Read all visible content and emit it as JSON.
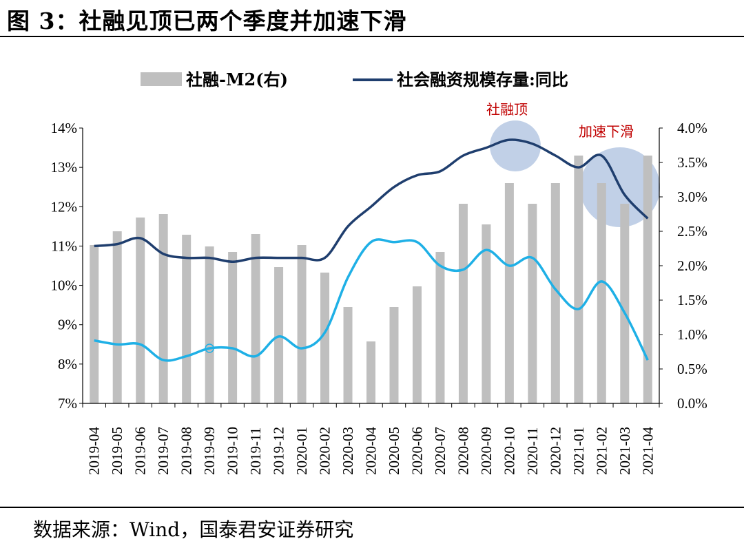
{
  "figure_title": "图 3：社融见顶已两个季度并加速下滑",
  "source": "数据来源：Wind，国泰君安证券研究",
  "colors": {
    "bar": "#bfbfbf",
    "line_dark": "#1f3e6e",
    "line_light": "#1fb0e6",
    "annotation_text": "#c00000",
    "highlight_circle": "#8ea9d4"
  },
  "chart_data": {
    "type": "bar+line",
    "categories": [
      "2019-04",
      "2019-05",
      "2019-06",
      "2019-07",
      "2019-08",
      "2019-09",
      "2019-10",
      "2019-11",
      "2019-12",
      "2020-01",
      "2020-02",
      "2020-03",
      "2020-04",
      "2020-05",
      "2020-06",
      "2020-07",
      "2020-08",
      "2020-09",
      "2020-10",
      "2020-11",
      "2020-12",
      "2021-01",
      "2021-02",
      "2021-03",
      "2021-04"
    ],
    "left_axis": {
      "min": 7,
      "max": 14,
      "step": 1,
      "ticks": [
        "7%",
        "8%",
        "9%",
        "10%",
        "11%",
        "12%",
        "13%",
        "14%"
      ]
    },
    "right_axis": {
      "min": 0,
      "max": 4,
      "step": 0.5,
      "ticks": [
        "0.0%",
        "0.5%",
        "1.0%",
        "1.5%",
        "2.0%",
        "2.5%",
        "3.0%",
        "3.5%",
        "4.0%"
      ]
    },
    "legend": [
      {
        "name": "社融-M2(右)",
        "kind": "bar"
      },
      {
        "name": "社会融资规模存量:同比",
        "kind": "line"
      }
    ],
    "series": [
      {
        "name": "社融-M2(右)",
        "type": "bar",
        "axis": "right",
        "values": [
          2.3,
          2.5,
          2.7,
          2.75,
          2.45,
          2.28,
          2.2,
          2.46,
          1.98,
          2.3,
          1.9,
          1.4,
          0.9,
          1.4,
          1.7,
          2.2,
          2.9,
          2.6,
          3.2,
          2.9,
          3.2,
          3.6,
          3.2,
          2.9,
          3.6
        ]
      },
      {
        "name": "社会融资规模存量:同比",
        "type": "line",
        "axis": "left",
        "values": [
          11.0,
          11.05,
          11.2,
          10.8,
          10.7,
          10.7,
          10.6,
          10.7,
          10.7,
          10.7,
          10.7,
          11.5,
          12.0,
          12.5,
          12.8,
          12.9,
          13.3,
          13.5,
          13.7,
          13.6,
          13.3,
          13.0,
          13.3,
          12.3,
          11.7
        ]
      },
      {
        "type": "line",
        "axis": "left",
        "values": [
          8.6,
          8.5,
          8.5,
          8.1,
          8.2,
          8.4,
          8.4,
          8.2,
          8.7,
          8.4,
          8.8,
          10.2,
          11.1,
          11.1,
          11.1,
          10.5,
          10.4,
          10.9,
          10.5,
          10.7,
          9.9,
          9.4,
          10.1,
          9.3,
          8.1
        ]
      }
    ],
    "annotations": [
      {
        "text": "社融顶"
      },
      {
        "text": "加速下滑"
      }
    ]
  }
}
